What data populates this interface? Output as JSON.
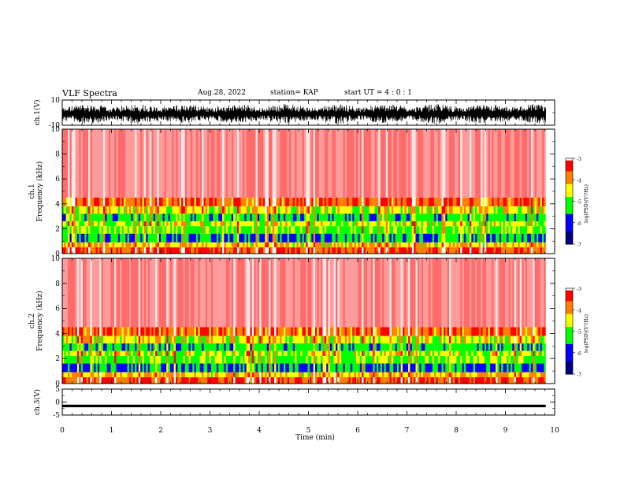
{
  "header": {
    "title": "VLF Spectra",
    "date": "Aug.28, 2022",
    "station": "station= KAP",
    "start_ut": "start UT = 4 : 0 : 1"
  },
  "chart_data": [
    {
      "type": "line",
      "panel": "ch1-waveform",
      "ylabel": "ch.1(V)",
      "ylim": [
        -10,
        10
      ],
      "yticks": [
        "10",
        "-10"
      ],
      "xlim": [
        0,
        10
      ],
      "note_trace": "dense oscillating signal with amplitude up to about 7.5 V, ending near 9.8 min"
    },
    {
      "type": "heatmap",
      "panel": "ch1-spectrogram",
      "ylabel": "ch.1\nFrequency (kHz)",
      "ylim": [
        0,
        10
      ],
      "yticks": [
        "0",
        "2",
        "4",
        "6",
        "8",
        "10"
      ],
      "xlim": [
        0,
        10
      ],
      "colorbar": {
        "label": "log(PSD)(V²/Hz)",
        "range": [
          -7,
          -3
        ],
        "ticks": [
          "-3",
          "-4",
          "-5",
          "-6",
          "-7"
        ]
      }
    },
    {
      "type": "heatmap",
      "panel": "ch2-spectrogram",
      "ylabel": "ch.2\nFrequency (kHz)",
      "ylim": [
        0,
        10
      ],
      "yticks": [
        "0",
        "2",
        "4",
        "6",
        "8",
        "10"
      ],
      "xlim": [
        0,
        10
      ],
      "colorbar": {
        "label": "log(PSD)(V²/Hz)",
        "range": [
          -7,
          -3
        ],
        "ticks": [
          "-3",
          "-4",
          "-5",
          "-6",
          "-7"
        ]
      }
    },
    {
      "type": "line",
      "panel": "ch3-waveform",
      "ylabel": "ch.3(V)",
      "ylim": [
        -5,
        5
      ],
      "yticks": [
        "5",
        "0",
        "-5"
      ],
      "xlim": [
        0,
        10
      ],
      "note_trace": "constant band near -1.5 V"
    }
  ],
  "xaxis": {
    "label": "Time (min)",
    "ticks": [
      "0",
      "1",
      "2",
      "3",
      "4",
      "5",
      "6",
      "7",
      "8",
      "9",
      "10"
    ]
  },
  "colors": {
    "background": "#ffffff",
    "trace": "#000000",
    "cmap": [
      "#00007f",
      "#0000ff",
      "#00ff00",
      "#ffff00",
      "#ff7f00",
      "#ff0000",
      "#ffffff"
    ]
  }
}
